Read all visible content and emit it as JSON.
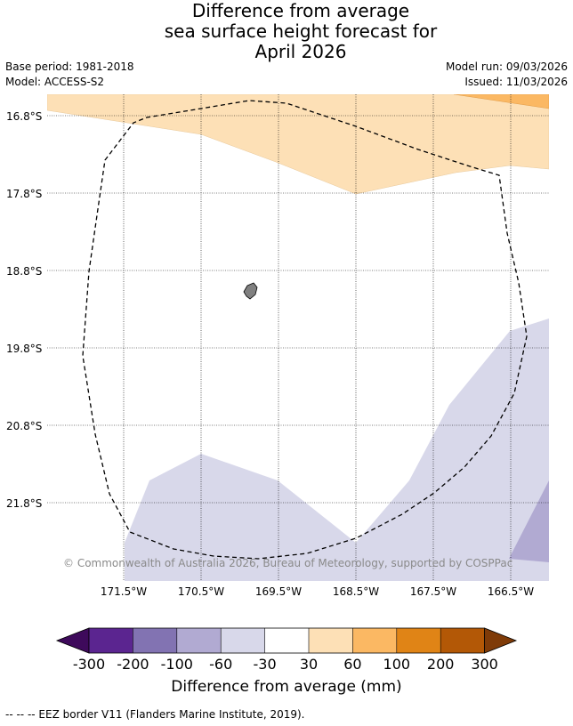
{
  "title": {
    "line1": "Difference from average",
    "line2": "sea surface height forecast for",
    "line3": "April 2026"
  },
  "meta": {
    "base_period": "Base period: 1981-2018",
    "model": "Model: ACCESS-S2",
    "model_run": "Model run: 09/03/2026",
    "issued": "Issued: 11/03/2026"
  },
  "map": {
    "lat_labels": [
      "16.8°S",
      "17.8°S",
      "18.8°S",
      "19.8°S",
      "20.8°S",
      "21.8°S"
    ],
    "lon_labels": [
      "171.5°W",
      "170.5°W",
      "169.5°W",
      "168.5°W",
      "167.5°W",
      "166.5°W"
    ],
    "copyright": "© Commonwealth of Australia 2026, Bureau of Meteorology, supported by COSPPac",
    "fill_colors": {
      "light_orange": "#fde0b6",
      "orange": "#fbb863",
      "light_purple": "#d8d8ea",
      "purple": "#b1aad2",
      "land": "#808080"
    }
  },
  "colorbar": {
    "labels": [
      "-300",
      "-200",
      "-100",
      "-60",
      "-30",
      "30",
      "60",
      "100",
      "200",
      "300"
    ],
    "colors": [
      "#3e0a5b",
      "#5b2590",
      "#8273b2",
      "#b1aad2",
      "#d8d8ea",
      "#ffffff",
      "#fde0b6",
      "#fbb863",
      "#e08416",
      "#b35806",
      "#7f3b08"
    ],
    "title": "Difference from average (mm)"
  },
  "footnote": "--  --  -- EEZ border V11 (Flanders Marine Institute, 2019)."
}
